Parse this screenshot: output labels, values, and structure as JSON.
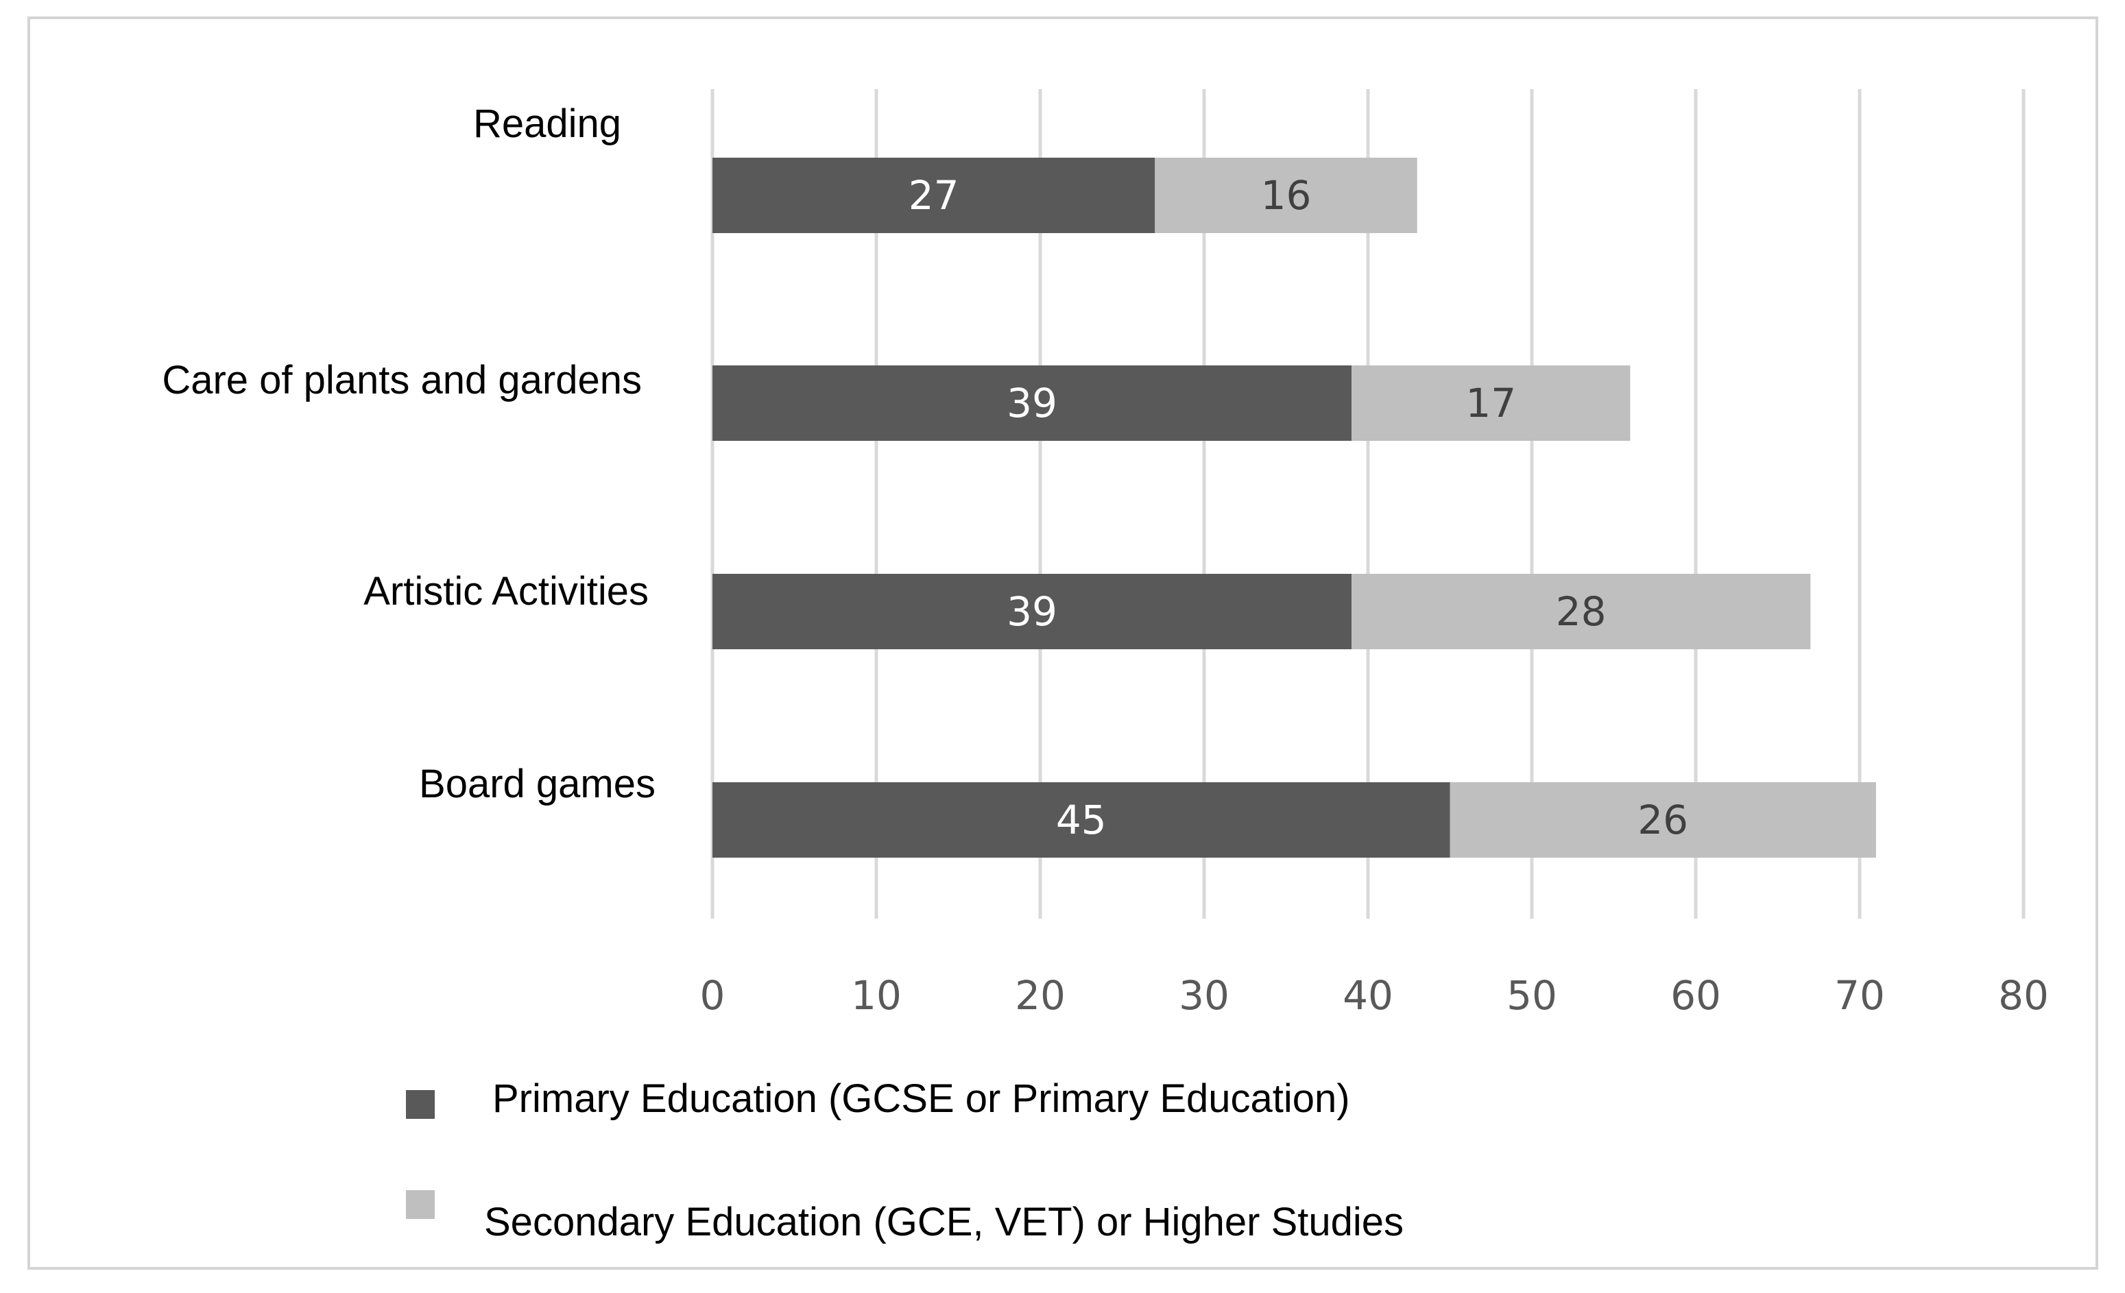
{
  "chart_data": {
    "type": "bar",
    "orientation": "horizontal",
    "stacked": true,
    "title": "",
    "xlabel": "",
    "ylabel": "",
    "xlim": [
      0,
      80
    ],
    "ticks": [
      0,
      10,
      20,
      30,
      40,
      50,
      60,
      70,
      80
    ],
    "tick_labels": [
      "0",
      "10",
      "20",
      "30",
      "40",
      "50",
      "60",
      "70",
      "80"
    ],
    "grid": true,
    "categories": [
      "Reading",
      "Care of plants and gardens",
      "Artistic Activities",
      "Board games"
    ],
    "series": [
      {
        "name": "Primary Education (GCSE or Primary Education)",
        "color": "#595959",
        "label_color": "#ffffff",
        "values": [
          27,
          39,
          39,
          45
        ],
        "labels": [
          "27",
          "39",
          "39",
          "45"
        ]
      },
      {
        "name": "Secondary Education (GCE, VET) or Higher Studies",
        "color": "#bfbfbf",
        "label_color": "#404040",
        "values": [
          16,
          17,
          28,
          26
        ],
        "labels": [
          "16",
          "17",
          "28",
          "26"
        ]
      }
    ],
    "legend_position": "bottom"
  }
}
